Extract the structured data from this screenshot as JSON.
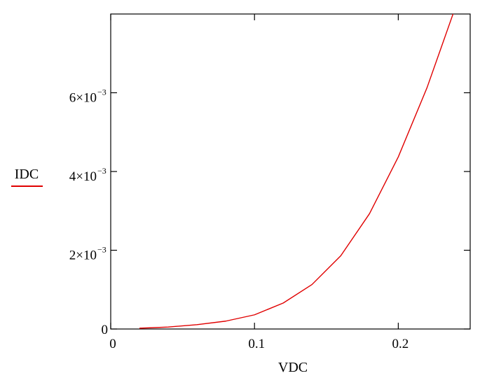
{
  "chart_data": {
    "type": "line",
    "xlabel": "VDC",
    "ylabel": "IDC",
    "xlim": [
      0,
      0.25
    ],
    "ylim": [
      0,
      0.008
    ],
    "x_ticks": [
      {
        "value": 0,
        "label": "0"
      },
      {
        "value": 0.1,
        "label": "0.1"
      },
      {
        "value": 0.2,
        "label": "0.2"
      }
    ],
    "y_ticks": [
      {
        "value": 0,
        "mantissa": "0",
        "exponent": ""
      },
      {
        "value": 0.002,
        "mantissa": "2×10",
        "exponent": "−3"
      },
      {
        "value": 0.004,
        "mantissa": "4×10",
        "exponent": "−3"
      },
      {
        "value": 0.006,
        "mantissa": "6×10",
        "exponent": "−3"
      }
    ],
    "grid": false,
    "legend": "left",
    "series": [
      {
        "name": "IDC",
        "color": "#e00000",
        "x": [
          0.02,
          0.04,
          0.06,
          0.08,
          0.1,
          0.12,
          0.14,
          0.16,
          0.18,
          0.2,
          0.22,
          0.24
        ],
        "y": [
          2e-05,
          5e-05,
          0.00011,
          0.0002,
          0.00036,
          0.00066,
          0.00113,
          0.00186,
          0.00293,
          0.00437,
          0.00613,
          0.0082
        ]
      }
    ]
  }
}
